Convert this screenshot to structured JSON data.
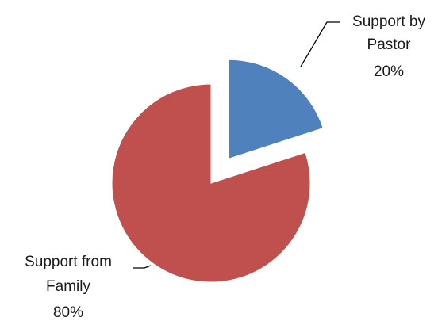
{
  "chart_data": {
    "type": "pie",
    "exploded": true,
    "slices": [
      {
        "label_line1": "Support by",
        "label_line2": "Pastor",
        "value": 20,
        "value_label": "20%",
        "color": "#4f81bd"
      },
      {
        "label_line1": "Support from",
        "label_line2": "Family",
        "value": 80,
        "value_label": "80%",
        "color": "#c0504d"
      }
    ],
    "legend": "none",
    "labels": "outside-with-leader-lines"
  }
}
